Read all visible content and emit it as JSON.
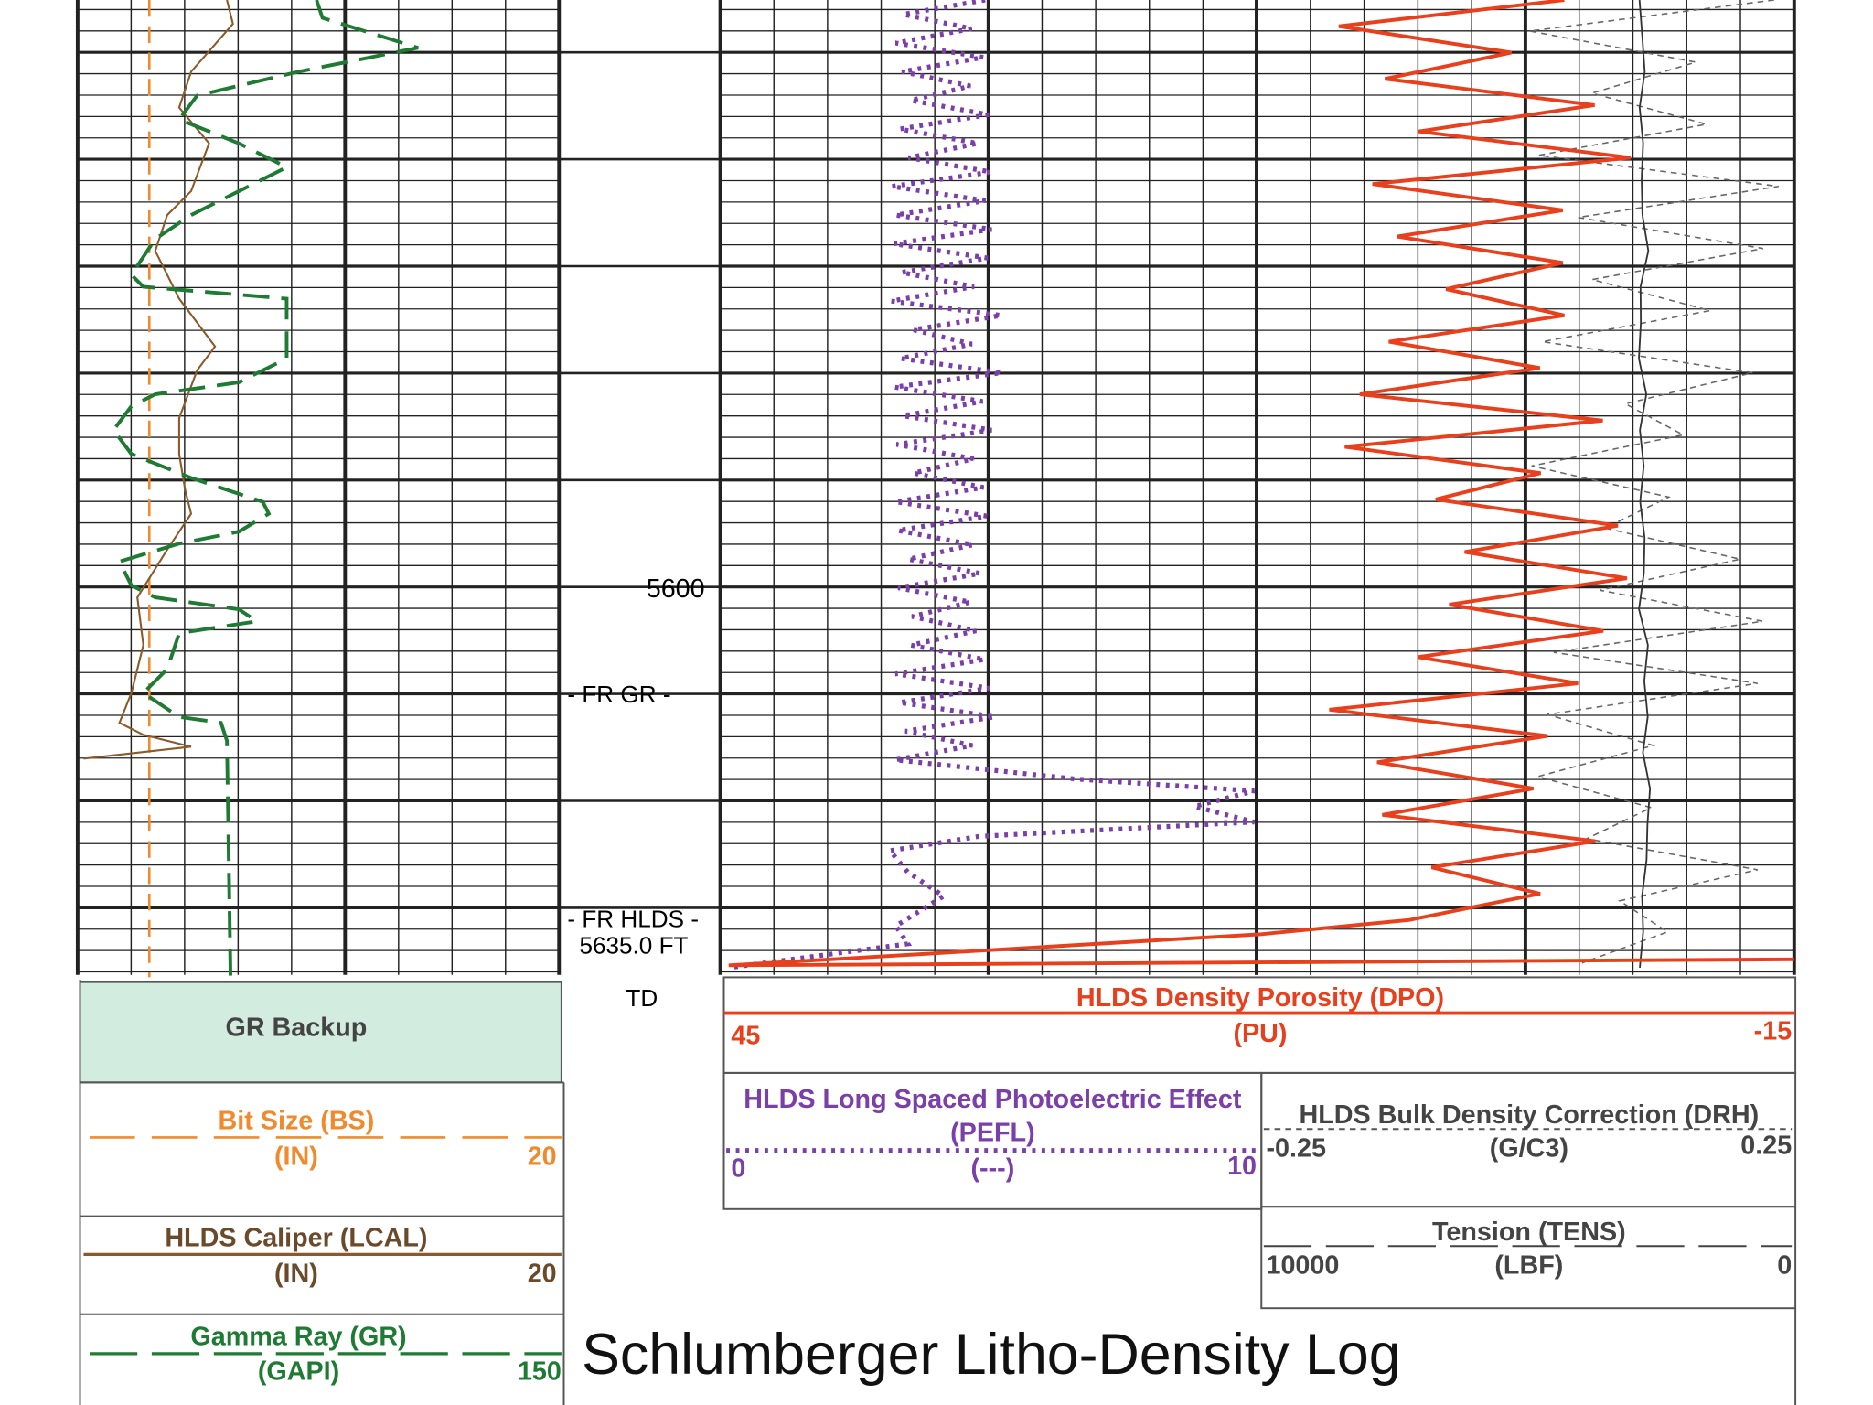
{
  "depth_track": {
    "depth": "5600",
    "fr_gr": "- FR GR -",
    "fr_hlds": "- FR HLDS -",
    "total_depth": "5635.0 FT",
    "td": "TD"
  },
  "legend": {
    "gr_backup": "GR Backup",
    "bit_size": {
      "name": "Bit Size (BS)",
      "unit": "(IN)",
      "right": "20"
    },
    "caliper": {
      "name": "HLDS Caliper (LCAL)",
      "unit": "(IN)",
      "right": "20"
    },
    "gamma_ray": {
      "name": "Gamma Ray (GR)",
      "unit": "(GAPI)",
      "right": "150"
    },
    "density_porosity": {
      "name": "HLDS Density Porosity (DPO)",
      "unit": "(PU)",
      "left": "45",
      "right": "-15"
    },
    "pefl": {
      "name": "HLDS Long Spaced Photoelectric Effect",
      "short": "(PEFL)",
      "unit": "(---)",
      "left": "0",
      "right": "10"
    },
    "drho": {
      "name": "HLDS Bulk Density Correction (DRH)",
      "unit": "(G/C3)",
      "left": "-0.25",
      "right": "0.25"
    },
    "tension": {
      "name": "Tension (TENS)",
      "unit": "(LBF)",
      "left": "10000",
      "right": "0"
    }
  },
  "title": "Schlumberger Litho-Density Log"
}
